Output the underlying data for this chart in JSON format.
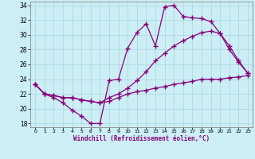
{
  "xlabel": "Windchill (Refroidissement éolien,°C)",
  "xlim_min": -0.5,
  "xlim_max": 23.5,
  "ylim_min": 17.5,
  "ylim_max": 34.5,
  "xticks": [
    0,
    1,
    2,
    3,
    4,
    5,
    6,
    7,
    8,
    9,
    10,
    11,
    12,
    13,
    14,
    15,
    16,
    17,
    18,
    19,
    20,
    21,
    22,
    23
  ],
  "yticks": [
    18,
    20,
    22,
    24,
    26,
    28,
    30,
    32,
    34
  ],
  "bg_color": "#cceef5",
  "grid_color": "#aad4e0",
  "line_color": "#880077",
  "line1_x": [
    0,
    1,
    2,
    3,
    4,
    5,
    6,
    7,
    8,
    9,
    10,
    11,
    12,
    13,
    14,
    15,
    16,
    17,
    18,
    19,
    20,
    21,
    22,
    23
  ],
  "line1_y": [
    23.3,
    22.0,
    21.5,
    20.8,
    19.8,
    19.0,
    18.0,
    18.0,
    23.8,
    24.0,
    28.2,
    30.3,
    31.5,
    28.5,
    33.8,
    34.0,
    32.5,
    32.3,
    32.2,
    31.8,
    30.2,
    28.0,
    26.3,
    24.8
  ],
  "line2_x": [
    0,
    1,
    2,
    3,
    4,
    5,
    6,
    7,
    8,
    9,
    10,
    11,
    12,
    13,
    14,
    15,
    16,
    17,
    18,
    19,
    20,
    21,
    22,
    23
  ],
  "line2_y": [
    23.3,
    22.0,
    21.8,
    21.5,
    21.5,
    21.2,
    21.0,
    20.8,
    21.5,
    22.0,
    22.8,
    23.8,
    25.0,
    26.5,
    27.5,
    28.5,
    29.2,
    29.8,
    30.3,
    30.5,
    30.2,
    28.5,
    26.5,
    24.8
  ],
  "line3_x": [
    0,
    1,
    2,
    3,
    4,
    5,
    6,
    7,
    8,
    9,
    10,
    11,
    12,
    13,
    14,
    15,
    16,
    17,
    18,
    19,
    20,
    21,
    22,
    23
  ],
  "line3_y": [
    23.3,
    22.0,
    21.8,
    21.5,
    21.5,
    21.2,
    21.0,
    20.8,
    21.0,
    21.5,
    22.0,
    22.3,
    22.5,
    22.8,
    23.0,
    23.3,
    23.5,
    23.7,
    24.0,
    24.0,
    24.0,
    24.2,
    24.3,
    24.5
  ]
}
